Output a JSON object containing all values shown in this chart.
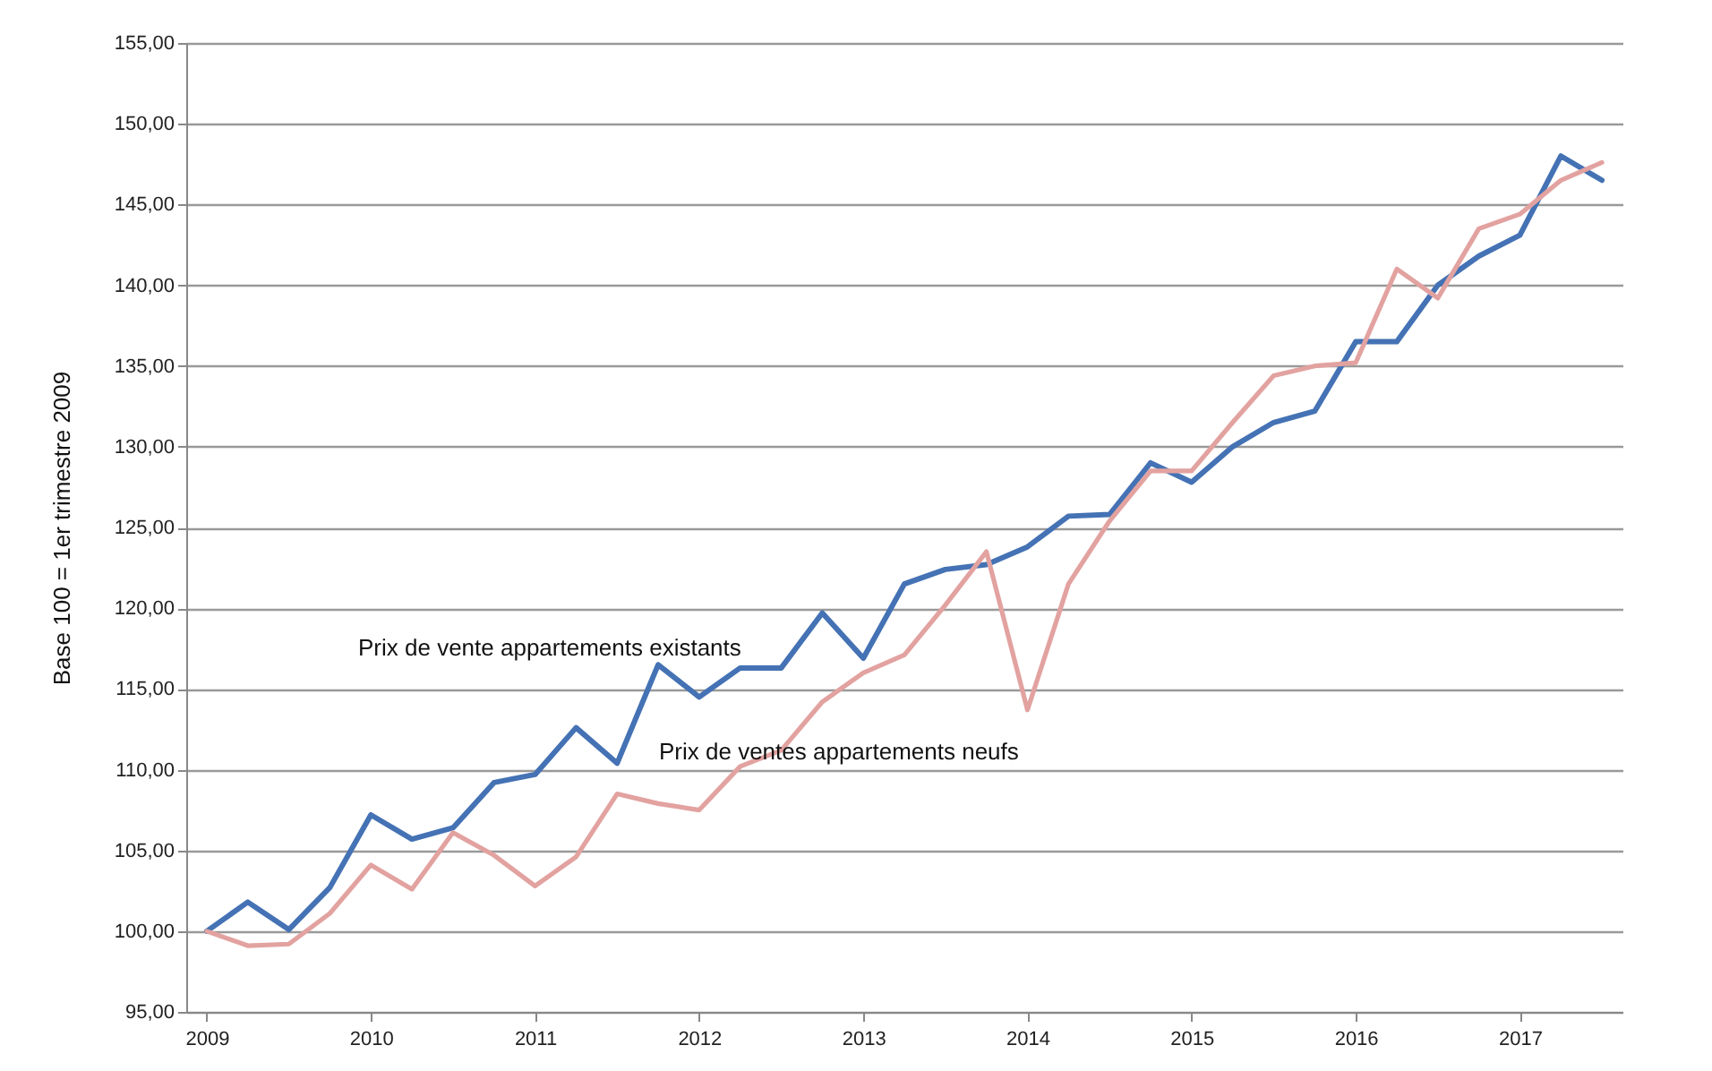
{
  "chart_data": {
    "type": "line",
    "ylabel": "Base 100 = 1er trimestre 2009",
    "x": [
      2009,
      2009.25,
      2009.5,
      2009.75,
      2010,
      2010.25,
      2010.5,
      2010.75,
      2011,
      2011.25,
      2011.5,
      2011.75,
      2012,
      2012.25,
      2012.5,
      2012.75,
      2013,
      2013.25,
      2013.5,
      2013.75,
      2014,
      2014.25,
      2014.5,
      2014.75,
      2015,
      2015.25,
      2015.5,
      2015.75,
      2016,
      2016.25,
      2016.5,
      2016.75,
      2017,
      2017.25,
      2017.5
    ],
    "series": [
      {
        "name": "Prix de vente appartements existants",
        "color": "#4472b4",
        "values": [
          100,
          101.8,
          100.1,
          102.7,
          107.2,
          105.7,
          106.4,
          109.2,
          109.7,
          112.6,
          110.4,
          116.5,
          114.5,
          116.3,
          116.3,
          119.7,
          116.9,
          121.5,
          122.4,
          122.7,
          123.8,
          125.7,
          125.8,
          129.0,
          127.8,
          130.0,
          131.5,
          132.2,
          136.5,
          136.5,
          140.0,
          141.8,
          143.1,
          148.0,
          146.5
        ]
      },
      {
        "name": "Prix de ventes appartements neufs",
        "color": "#e2a2a0",
        "values": [
          100,
          99.1,
          99.2,
          101.1,
          104.1,
          102.6,
          106.1,
          104.7,
          102.8,
          104.6,
          108.5,
          107.9,
          107.5,
          110.2,
          111.2,
          114.2,
          116.0,
          117.1,
          120.2,
          123.5,
          113.7,
          121.5,
          125.4,
          128.5,
          128.5,
          131.5,
          134.4,
          135.0,
          135.2,
          141.0,
          139.2,
          143.5,
          144.4,
          146.5,
          147.6
        ]
      }
    ],
    "xlim": [
      2008.875,
      2017.625
    ],
    "xticks": [
      2009,
      2010,
      2011,
      2012,
      2013,
      2014,
      2015,
      2016,
      2017
    ],
    "ylim": [
      95,
      155
    ],
    "yticks": [
      {
        "value": 95,
        "label": "95,00"
      },
      {
        "value": 100,
        "label": "100,00"
      },
      {
        "value": 105,
        "label": "105,00"
      },
      {
        "value": 110,
        "label": "110,00"
      },
      {
        "value": 115,
        "label": "115,00"
      },
      {
        "value": 120,
        "label": "120,00"
      },
      {
        "value": 125,
        "label": "125,00"
      },
      {
        "value": 130,
        "label": "130,00"
      },
      {
        "value": 135,
        "label": "135,00"
      },
      {
        "value": 140,
        "label": "140,00"
      },
      {
        "value": 145,
        "label": "145,00"
      },
      {
        "value": 150,
        "label": "150,00"
      },
      {
        "value": 155,
        "label": "155,00"
      }
    ],
    "grid": "y",
    "legend": false,
    "marker": "none",
    "line_style": "solid"
  }
}
